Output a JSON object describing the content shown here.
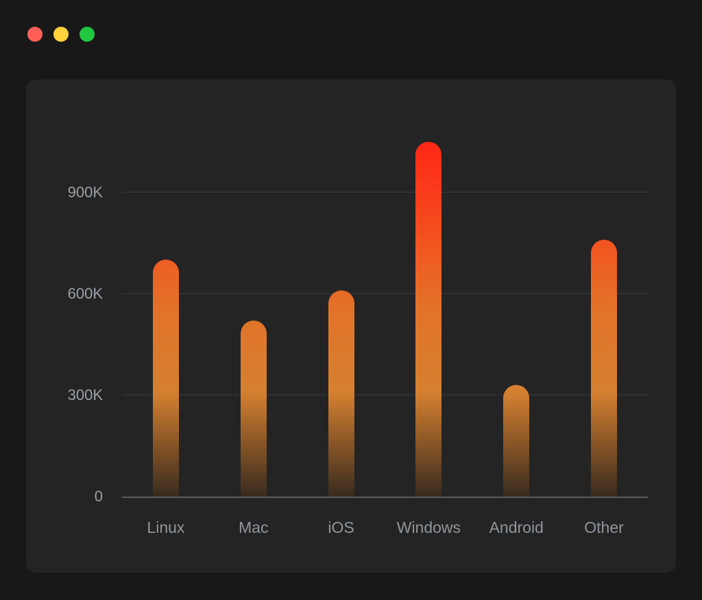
{
  "window": {
    "traffic_lights": [
      {
        "name": "close",
        "color": "#ff5f57"
      },
      {
        "name": "minimize",
        "color": "#ffd23b"
      },
      {
        "name": "zoom",
        "color": "#20c83f"
      }
    ]
  },
  "chart_data": {
    "type": "bar",
    "title": "",
    "categories": [
      "Linux",
      "Mac",
      "iOS",
      "Windows",
      "Android",
      "Other"
    ],
    "values": [
      700000,
      520000,
      610000,
      1050000,
      330000,
      760000
    ],
    "y_ticks": [
      {
        "label": "900K",
        "value": 900000
      },
      {
        "label": "600K",
        "value": 600000
      },
      {
        "label": "300K",
        "value": 300000
      },
      {
        "label": "0",
        "value": 0
      }
    ],
    "ylim": [
      0,
      1100000
    ],
    "grid": true,
    "legend": false,
    "bar_gradient_top_to_bottom": [
      {
        "color": "#ff2012",
        "pos": 0
      },
      {
        "color": "#f93c1b",
        "pos": 18
      },
      {
        "color": "#ef5c22",
        "pos": 36
      },
      {
        "color": "#e27329",
        "pos": 50
      },
      {
        "color": "#d58030",
        "pos": 72
      },
      {
        "color": "#7c4f25",
        "pos": 88
      },
      {
        "color": "#382b1e",
        "pos": 100
      }
    ],
    "colors": {
      "page_background": "#181818",
      "card_background": "#242424",
      "grid_line": "#3a3c3e",
      "axis_line": "#5a5d60",
      "tick_label": "#9aa0a6"
    }
  }
}
